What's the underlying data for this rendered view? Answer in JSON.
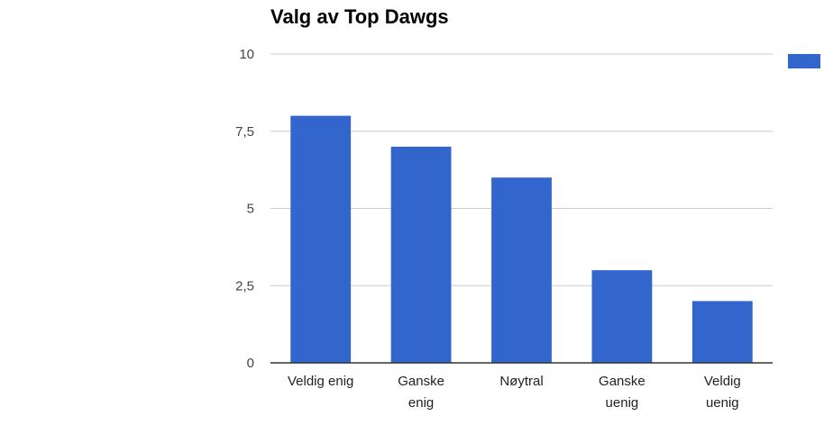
{
  "chart_data": {
    "type": "bar",
    "title": "Valg av Top Dawgs",
    "categories": [
      [
        "Veldig enig"
      ],
      [
        "Ganske",
        "enig"
      ],
      [
        "Nøytral"
      ],
      [
        "Ganske",
        "uenig"
      ],
      [
        "Veldig",
        "uenig"
      ]
    ],
    "series": [
      {
        "values": [
          8,
          7,
          6,
          3,
          2
        ],
        "color": "#3366cc"
      }
    ],
    "ylim": [
      0,
      10
    ],
    "yticks": [
      0,
      2.5,
      5,
      7.5,
      10
    ],
    "ytick_labels": [
      "0",
      "2,5",
      "5",
      "7,5",
      "10"
    ],
    "grid": true,
    "legend": {
      "placement": "top-right",
      "swatch_color": "#3366cc"
    }
  }
}
